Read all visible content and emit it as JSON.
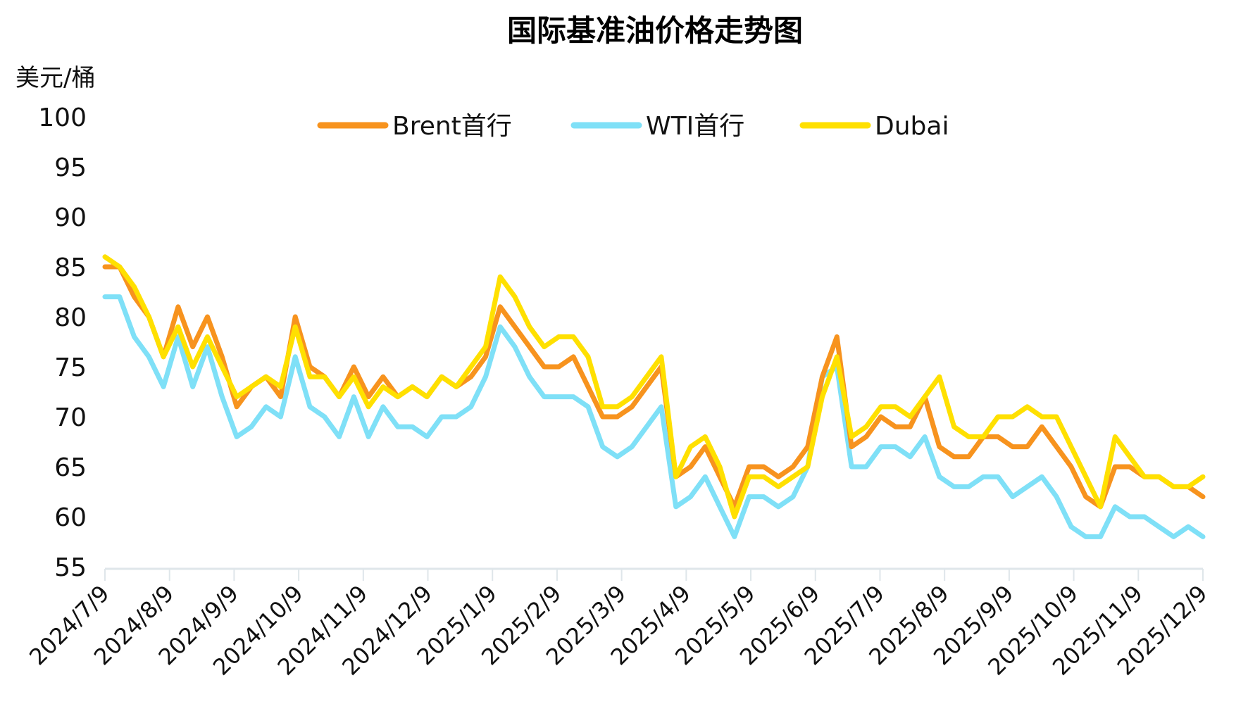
{
  "chart_data": {
    "type": "line",
    "title": "国际基准油价格走势图",
    "ylabel": "美元/桶",
    "xlabel": "",
    "ylim": [
      55,
      100
    ],
    "yticks": [
      55,
      60,
      65,
      70,
      75,
      80,
      85,
      90,
      95,
      100
    ],
    "x_start": "2024/7/9",
    "x_end": "2025/12/9",
    "x_sampling": "approximately weekly, evenly spaced from x_start to x_end",
    "xticks": [
      "2024/7/9",
      "2024/8/9",
      "2024/9/9",
      "2024/10/9",
      "2024/11/9",
      "2024/12/9",
      "2025/1/9",
      "2025/2/9",
      "2025/3/9",
      "2025/4/9",
      "2025/5/9",
      "2025/6/9",
      "2025/7/9",
      "2025/8/9",
      "2025/9/9",
      "2025/10/9",
      "2025/11/9",
      "2025/12/9"
    ],
    "grid": false,
    "legend_position": "top-center",
    "series": [
      {
        "name": "Brent首行",
        "color": "#F7931E",
        "values": [
          85,
          85,
          82,
          80,
          76,
          81,
          77,
          80,
          76,
          71,
          73,
          74,
          72,
          80,
          75,
          74,
          72,
          75,
          72,
          74,
          72,
          73,
          72,
          74,
          73,
          74,
          76,
          81,
          79,
          77,
          75,
          75,
          76,
          73,
          70,
          70,
          71,
          73,
          75,
          64,
          65,
          67,
          64,
          61,
          65,
          65,
          64,
          65,
          67,
          74,
          78,
          67,
          68,
          70,
          69,
          69,
          72,
          67,
          66,
          66,
          68,
          68,
          67,
          67,
          69,
          67,
          65,
          62,
          61,
          65,
          65,
          64,
          64,
          63,
          63,
          62
        ]
      },
      {
        "name": "WTI首行",
        "color": "#7FE0F7",
        "values": [
          82,
          82,
          78,
          76,
          73,
          78,
          73,
          77,
          72,
          68,
          69,
          71,
          70,
          76,
          71,
          70,
          68,
          72,
          68,
          71,
          69,
          69,
          68,
          70,
          70,
          71,
          74,
          79,
          77,
          74,
          72,
          72,
          72,
          71,
          67,
          66,
          67,
          69,
          71,
          61,
          62,
          64,
          61,
          58,
          62,
          62,
          61,
          62,
          65,
          74,
          75,
          65,
          65,
          67,
          67,
          66,
          68,
          64,
          63,
          63,
          64,
          64,
          62,
          63,
          64,
          62,
          59,
          58,
          58,
          61,
          60,
          60,
          59,
          58,
          59,
          58
        ]
      },
      {
        "name": "Dubai",
        "color": "#FFE000",
        "values": [
          86,
          85,
          83,
          80,
          76,
          79,
          75,
          78,
          75,
          72,
          73,
          74,
          73,
          79,
          74,
          74,
          72,
          74,
          71,
          73,
          72,
          73,
          72,
          74,
          73,
          75,
          77,
          84,
          82,
          79,
          77,
          78,
          78,
          76,
          71,
          71,
          72,
          74,
          76,
          64,
          67,
          68,
          65,
          60,
          64,
          64,
          63,
          64,
          65,
          72,
          76,
          68,
          69,
          71,
          71,
          70,
          72,
          74,
          69,
          68,
          68,
          70,
          70,
          71,
          70,
          70,
          67,
          64,
          61,
          68,
          66,
          64,
          64,
          63,
          63,
          64
        ]
      }
    ]
  }
}
